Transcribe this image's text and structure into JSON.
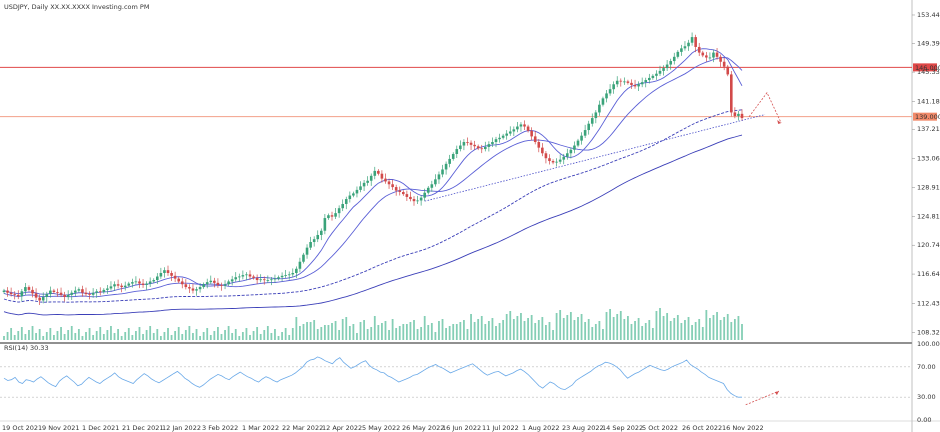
{
  "header": {
    "symbol_line": "USDJPY, Daily  XX.XX.XXXX  Investing.com  PM",
    "rsi_label": "RSI(14)  30.33"
  },
  "colors": {
    "bull": "#3aa37a",
    "bear": "#d24a4a",
    "ma_fast": "#5a5fd6",
    "ma_slow": "#3b3fb8",
    "rsi_line": "#6aa9e8",
    "resistance_line": "#e04848",
    "support_line": "#f2a08a",
    "volume": "#6fc6a8",
    "forecast": "#d45050",
    "trendline": "#4a4fc8",
    "price_tag_fill": "#e04848",
    "support_tag_fill": "#f28a6a"
  },
  "chart_data": [
    {
      "type": "candlestick",
      "x_labels": [
        "19 Oct 2021",
        "9 Nov 2021",
        "1 Dec 2021",
        "21 Dec 2021",
        "12 Jan 2022",
        "3 Feb 2022",
        "1 Mar 2022",
        "22 Mar 2022",
        "12 Apr 2022",
        "5 May 2022",
        "26 May 2022",
        "16 Jun 2022",
        "11 Jul 2022",
        "1 Aug 2022",
        "23 Aug 2022",
        "14 Sep 2022",
        "5 Oct 2022",
        "26 Oct 2022",
        "16 Nov 2022"
      ],
      "y_ticks": [
        153.44,
        149.39,
        145.33,
        141.18,
        137.215,
        133.065,
        128.91,
        124.815,
        120.745,
        116.645,
        112.435,
        108.325
      ],
      "ylim": [
        107.0,
        155.0
      ],
      "trend": [
        114.3,
        114.0,
        113.8,
        113.7,
        113.5,
        114.2,
        114.8,
        114.4,
        113.9,
        113.3,
        112.9,
        113.4,
        113.8,
        114.3,
        114.1,
        114.0,
        113.7,
        113.4,
        113.7,
        114.0,
        114.3,
        114.5,
        114.0,
        113.8,
        113.7,
        114.0,
        114.2,
        114.1,
        114.4,
        114.6,
        114.9,
        115.2,
        115.0,
        114.8,
        115.0,
        115.3,
        115.5,
        115.6,
        115.3,
        115.1,
        115.3,
        115.6,
        115.8,
        116.3,
        116.8,
        117.2,
        116.8,
        116.4,
        116.0,
        115.6,
        115.2,
        114.8,
        114.6,
        114.3,
        114.5,
        114.8,
        115.2,
        115.5,
        115.7,
        115.4,
        115.1,
        115.0,
        115.2,
        115.6,
        115.9,
        116.2,
        116.3,
        116.5,
        116.6,
        116.3,
        116.1,
        115.8,
        115.9,
        115.8,
        115.8,
        115.9,
        116.0,
        116.2,
        116.4,
        116.5,
        116.6,
        116.8,
        117.4,
        118.4,
        119.4,
        120.4,
        121.2,
        121.6,
        122.2,
        122.8,
        124.6,
        125.0,
        124.8,
        125.3,
        126.0,
        126.6,
        127.3,
        127.8,
        128.1,
        128.6,
        129.1,
        129.6,
        129.9,
        130.6,
        131.3,
        130.9,
        130.2,
        129.8,
        129.4,
        129.0,
        128.5,
        128.3,
        128.0,
        127.6,
        127.3,
        127.0,
        127.1,
        127.5,
        128.2,
        128.9,
        129.4,
        130.1,
        130.8,
        131.5,
        132.3,
        133.0,
        133.7,
        134.4,
        134.9,
        135.4,
        135.3,
        135.0,
        134.8,
        134.5,
        134.4,
        134.7,
        135.1,
        135.4,
        135.8,
        136.0,
        136.3,
        136.6,
        136.9,
        137.2,
        137.6,
        137.9,
        137.6,
        137.0,
        136.2,
        135.4,
        134.6,
        133.8,
        133.1,
        132.7,
        132.5,
        132.6,
        132.9,
        133.3,
        133.8,
        134.3,
        134.9,
        135.6,
        136.3,
        137.1,
        138.0,
        138.8,
        139.6,
        140.7,
        141.6,
        142.3,
        142.9,
        143.6,
        144.1,
        144.0,
        144.0,
        143.8,
        143.5,
        143.3,
        143.6,
        143.9,
        144.2,
        144.5,
        144.8,
        145.1,
        145.5,
        145.9,
        146.4,
        146.9,
        147.5,
        148.2,
        148.7,
        149.0,
        149.5,
        150.3,
        148.9,
        148.1,
        147.7,
        147.4,
        147.4,
        148.1,
        147.5,
        146.8,
        146.1,
        145.0,
        139.6,
        139.1,
        139.4,
        138.8
      ],
      "volume_note": "volume bars shown in lower band of price panel",
      "series": [
        {
          "name": "MA fast",
          "offset": -0.8
        },
        {
          "name": "MA slow",
          "offset": -1.6
        }
      ],
      "horizontal_levels": [
        {
          "label": "146.000",
          "value": 146.0
        },
        {
          "label": "139.000",
          "value": 139.0
        }
      ],
      "annotations": {
        "forecast_path": [
          [
            209,
            139.0
          ],
          [
            214,
            142.4
          ],
          [
            218,
            138.1
          ]
        ]
      }
    },
    {
      "type": "line",
      "title_text": "RSI(14)  30.33",
      "y_ticks": [
        100.0,
        70.0,
        30.0,
        0.0
      ],
      "ylim": [
        0,
        100
      ],
      "values": [
        55,
        52,
        53,
        56,
        50,
        48,
        53,
        52,
        50,
        54,
        57,
        53,
        49,
        46,
        44,
        51,
        55,
        58,
        54,
        50,
        45,
        47,
        52,
        56,
        53,
        50,
        48,
        52,
        55,
        58,
        62,
        57,
        54,
        52,
        50,
        48,
        53,
        57,
        61,
        58,
        54,
        51,
        49,
        52,
        55,
        58,
        61,
        64,
        60,
        55,
        52,
        48,
        45,
        43,
        46,
        50,
        54,
        57,
        60,
        58,
        55,
        53,
        57,
        60,
        63,
        60,
        57,
        55,
        52,
        50,
        54,
        57,
        55,
        52,
        50,
        53,
        55,
        57,
        59,
        62,
        66,
        70,
        76,
        79,
        80,
        83,
        81,
        78,
        76,
        74,
        79,
        82,
        76,
        72,
        68,
        70,
        73,
        76,
        78,
        72,
        68,
        66,
        63,
        62,
        58,
        56,
        53,
        50,
        52,
        54,
        56,
        59,
        60,
        63,
        66,
        69,
        71,
        73,
        70,
        68,
        65,
        62,
        64,
        66,
        68,
        70,
        72,
        74,
        70,
        66,
        62,
        59,
        61,
        63,
        64,
        61,
        58,
        60,
        62,
        65,
        67,
        64,
        60,
        55,
        50,
        45,
        42,
        46,
        50,
        48,
        44,
        41,
        40,
        43,
        46,
        52,
        55,
        58,
        61,
        64,
        68,
        71,
        73,
        76,
        75,
        73,
        70,
        66,
        60,
        55,
        58,
        61,
        63,
        66,
        69,
        72,
        70,
        68,
        66,
        65,
        67,
        70,
        72,
        74,
        76,
        79,
        73,
        70,
        67,
        63,
        60,
        56,
        54,
        52,
        50,
        48,
        40,
        35,
        32,
        30,
        30
      ],
      "forecast_path": [
        [
          201,
          20
        ],
        [
          210,
          38
        ]
      ]
    }
  ]
}
